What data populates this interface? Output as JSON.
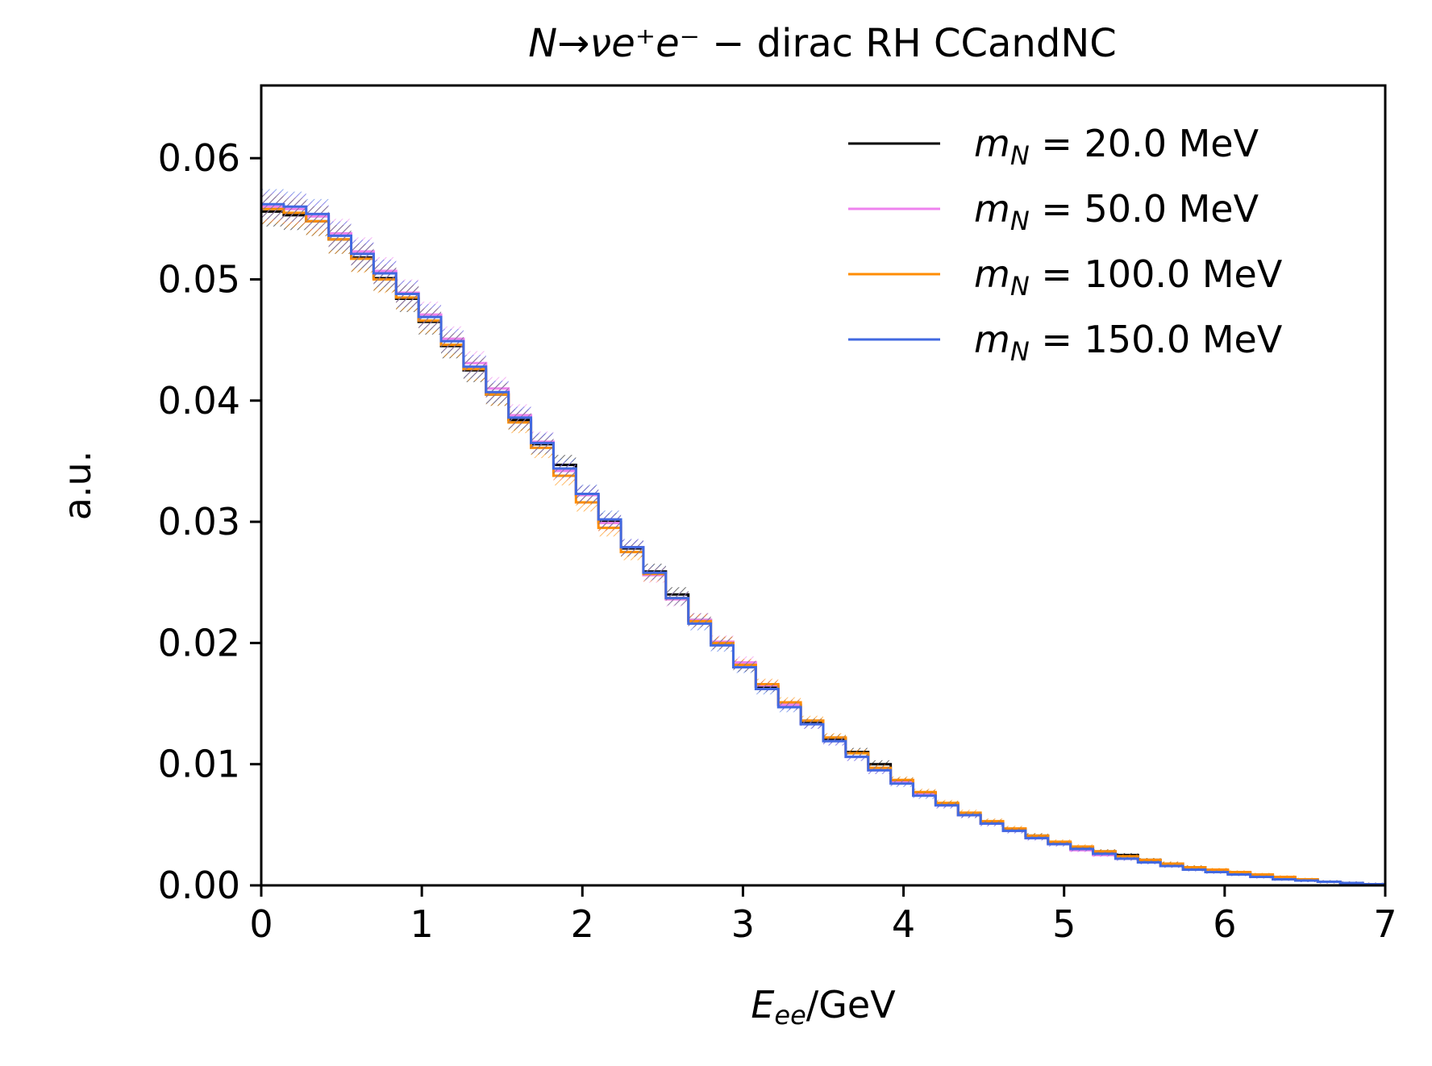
{
  "chart_data": {
    "type": "line",
    "step": true,
    "title": {
      "full": "N→νe⁺e⁻ − dirac RH CCandNC",
      "math": "N→νe⁺e⁻",
      "rest": " − dirac RH CCandNC"
    },
    "xlabel": {
      "full": "Eee/GeV",
      "main": "E",
      "sub": "ee",
      "rest": "/GeV"
    },
    "ylabel": "a.u.",
    "xlim": [
      0,
      7
    ],
    "ylim": [
      0,
      0.066
    ],
    "xticks": [
      0,
      1,
      2,
      3,
      4,
      5,
      6,
      7
    ],
    "xtick_labels": [
      "0",
      "1",
      "2",
      "3",
      "4",
      "5",
      "6",
      "7"
    ],
    "yticks": [
      0.0,
      0.01,
      0.02,
      0.03,
      0.04,
      0.05,
      0.06
    ],
    "ytick_labels": [
      "0.00",
      "0.01",
      "0.02",
      "0.03",
      "0.04",
      "0.05",
      "0.06"
    ],
    "legend_position": "upper-right",
    "grid": false,
    "bin_width": 0.14,
    "bin_edges": [
      0,
      0.14,
      0.28,
      0.42,
      0.56,
      0.7,
      0.84,
      0.98,
      1.12,
      1.26,
      1.4,
      1.54,
      1.68,
      1.82,
      1.96,
      2.1,
      2.24,
      2.38,
      2.52,
      2.66,
      2.8,
      2.94,
      3.08,
      3.22,
      3.36,
      3.5,
      3.64,
      3.78,
      3.92,
      4.06,
      4.2,
      4.34,
      4.48,
      4.62,
      4.76,
      4.9,
      5.04,
      5.18,
      5.32,
      5.46,
      5.6,
      5.74,
      5.88,
      6.02,
      6.16,
      6.3,
      6.44,
      6.58,
      6.72,
      6.86,
      7.0
    ],
    "series": [
      {
        "name": "m_N = 20.0 MeV",
        "legend": {
          "m": "m",
          "sub": "N",
          "value": " = 20.0 MeV"
        },
        "color": "#000000",
        "values": [
          0.0556,
          0.0553,
          0.0548,
          0.0533,
          0.0518,
          0.0501,
          0.0484,
          0.0465,
          0.0445,
          0.0425,
          0.0405,
          0.0384,
          0.0364,
          0.0347,
          0.0322,
          0.03,
          0.0278,
          0.0259,
          0.024,
          0.0219,
          0.02,
          0.0181,
          0.0164,
          0.0149,
          0.0134,
          0.0121,
          0.011,
          0.01,
          0.0086,
          0.0076,
          0.0067,
          0.0058,
          0.0052,
          0.0046,
          0.0041,
          0.0035,
          0.0031,
          0.0028,
          0.0025,
          0.0021,
          0.0018,
          0.0015,
          0.0012,
          0.001,
          0.0008,
          0.0006,
          0.0004,
          0.0003,
          0.0002,
          0.0001
        ]
      },
      {
        "name": "m_N = 50.0 MeV",
        "legend": {
          "m": "m",
          "sub": "N",
          "value": " = 50.0 MeV"
        },
        "color": "#ee82ee",
        "values": [
          0.056,
          0.0558,
          0.0552,
          0.0538,
          0.0523,
          0.0507,
          0.0489,
          0.0471,
          0.0451,
          0.0431,
          0.041,
          0.0388,
          0.0366,
          0.0342,
          0.0322,
          0.0299,
          0.0279,
          0.0256,
          0.0236,
          0.0219,
          0.0201,
          0.0184,
          0.0165,
          0.0149,
          0.0133,
          0.0119,
          0.0106,
          0.0095,
          0.0085,
          0.0075,
          0.0066,
          0.0058,
          0.0051,
          0.0045,
          0.0039,
          0.0034,
          0.0029,
          0.0025,
          0.0022,
          0.0019,
          0.0016,
          0.0013,
          0.0011,
          0.0009,
          0.0007,
          0.0005,
          0.0004,
          0.0003,
          0.0002,
          0.0001
        ]
      },
      {
        "name": "m_N = 100.0 MeV",
        "legend": {
          "m": "m",
          "sub": "N",
          "value": " = 100.0 MeV"
        },
        "color": "#ff8c00",
        "values": [
          0.0558,
          0.0555,
          0.0548,
          0.0533,
          0.0517,
          0.05,
          0.0485,
          0.0466,
          0.0446,
          0.0426,
          0.0405,
          0.0382,
          0.0361,
          0.0338,
          0.0316,
          0.0295,
          0.0275,
          0.0257,
          0.0237,
          0.0218,
          0.02,
          0.0182,
          0.0166,
          0.0151,
          0.0136,
          0.0122,
          0.0109,
          0.0097,
          0.0087,
          0.0077,
          0.0068,
          0.006,
          0.0053,
          0.0047,
          0.0041,
          0.0036,
          0.0032,
          0.0028,
          0.0024,
          0.0021,
          0.0018,
          0.0015,
          0.0013,
          0.0011,
          0.0009,
          0.0007,
          0.0005,
          0.0003,
          0.0002,
          0.0001
        ]
      },
      {
        "name": "m_N = 150.0 MeV",
        "legend": {
          "m": "m",
          "sub": "N",
          "value": " = 150.0 MeV"
        },
        "color": "#4169e1",
        "values": [
          0.0562,
          0.056,
          0.0554,
          0.0536,
          0.0521,
          0.0505,
          0.0488,
          0.0469,
          0.0449,
          0.0428,
          0.0407,
          0.0386,
          0.0365,
          0.0344,
          0.0323,
          0.0302,
          0.0279,
          0.0258,
          0.0237,
          0.0216,
          0.0198,
          0.018,
          0.0162,
          0.0147,
          0.0133,
          0.0119,
          0.0106,
          0.0095,
          0.0084,
          0.0074,
          0.0066,
          0.0058,
          0.0051,
          0.0045,
          0.0039,
          0.0034,
          0.003,
          0.0026,
          0.0022,
          0.0019,
          0.0016,
          0.0013,
          0.0011,
          0.0009,
          0.0007,
          0.0005,
          0.0004,
          0.0003,
          0.0002,
          0.0001
        ]
      }
    ]
  }
}
